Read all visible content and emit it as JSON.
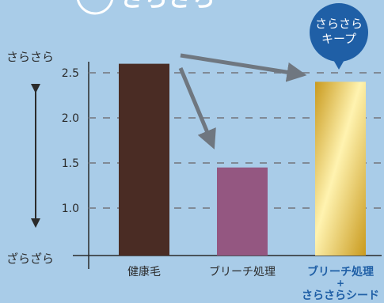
{
  "header": {
    "title_fragment": "さらさら"
  },
  "badge": {
    "line1": "さらさら",
    "line2": "キープ",
    "color": "#1f5fa6"
  },
  "axis_labels": {
    "top": "さらさら",
    "bottom": "ざらざら"
  },
  "colors": {
    "background": "#a9cce8",
    "axis": "#2b2b2b",
    "grid": "#808a96",
    "arrow": "#6f7780",
    "highlight_label": "#1f5fa6",
    "bar_healthy": "#4a2c24",
    "bar_bleach": "#945781",
    "bar_gold_light": "#fff3b0",
    "bar_gold_dark": "#c99a1e"
  },
  "chart_data": {
    "type": "bar",
    "categories": [
      "健康毛",
      "ブリーチ処理",
      "ブリーチ処理 + さらさらシード"
    ],
    "category_lines": [
      [
        "健康毛"
      ],
      [
        "ブリーチ処理"
      ],
      [
        "ブリーチ処理",
        "+",
        "さらさらシード"
      ]
    ],
    "values": [
      2.6,
      1.45,
      2.4
    ],
    "yticks": [
      "1.0",
      "1.5",
      "2.0",
      "2.5"
    ],
    "ylim": [
      0.5,
      2.8
    ],
    "grid": "dashed at ticks",
    "highlight_index": 2
  }
}
